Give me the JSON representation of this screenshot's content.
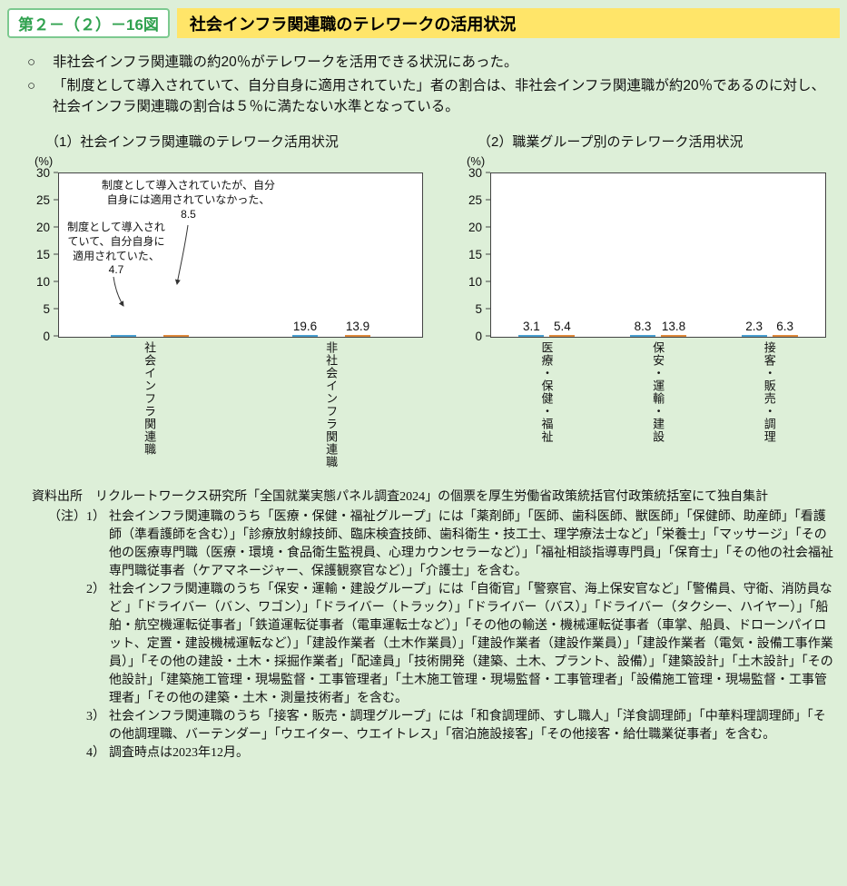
{
  "header": {
    "figure_label": "第２－（２）－16図",
    "title": "社会インフラ関連職のテレワークの活用状況"
  },
  "bullets": [
    "非社会インフラ関連職の約20％がテレワークを活用できる状況にあった。",
    "「制度として導入されていて、自分自身に適用されていた」者の割合は、非社会インフラ関連職が約20％であるのに対し、社会インフラ関連職の割合は５％に満たない水準となっている。"
  ],
  "colors": {
    "page_background": "#ddefd8",
    "title_highlight": "#ffe569",
    "figure_label_green": "#2fa14e",
    "series_blue": "#3e9cd0",
    "series_orange": "#e8923f"
  },
  "chart_data": [
    {
      "type": "bar",
      "title": "（1）社会インフラ関連職のテレワーク活用状況",
      "ylabel": "(%)",
      "xlabel": "",
      "ylim": [
        0,
        30
      ],
      "yticks": [
        0,
        5,
        10,
        15,
        20,
        25,
        30
      ],
      "grid": false,
      "legend_position": "none",
      "categories": [
        "社会インフラ関連職",
        "非社会インフラ関連職"
      ],
      "series": [
        {
          "name": "制度として導入されていて、自分自身に適用されていた",
          "values": [
            4.7,
            19.6
          ],
          "labels": [
            null,
            "19.6"
          ],
          "style": "blue-wave"
        },
        {
          "name": "制度として導入されていたが、自分自身には適用されていなかった",
          "values": [
            8.5,
            13.9
          ],
          "labels": [
            null,
            "13.9"
          ],
          "style": "orange-dot"
        }
      ],
      "annotations": [
        {
          "text": "制度として導入されていたが、自分\n自身には適用されていなかった、\n8.5",
          "series": "制度として導入されていたが、自分自身には適用されていなかった",
          "category": "社会インフラ関連職",
          "value": 8.5
        },
        {
          "text": "制度として導入され\nていて、自分自身に\n適用されていた、\n4.7",
          "series": "制度として導入されていて、自分自身に適用されていた",
          "category": "社会インフラ関連職",
          "value": 4.7
        }
      ]
    },
    {
      "type": "bar",
      "title": "（2）職業グループ別のテレワーク活用状況",
      "ylabel": "(%)",
      "xlabel": "",
      "ylim": [
        0,
        30
      ],
      "yticks": [
        0,
        5,
        10,
        15,
        20,
        25,
        30
      ],
      "grid": false,
      "legend_position": "none",
      "categories": [
        "医療・保健・福祉",
        "保安・運輸・建設",
        "接客・販売・調理"
      ],
      "series": [
        {
          "name": "制度として導入されていて、自分自身に適用されていた",
          "values": [
            3.1,
            8.3,
            2.3
          ],
          "labels": [
            "3.1",
            "8.3",
            "2.3"
          ],
          "style": "blue-wave"
        },
        {
          "name": "制度として導入されていたが、自分自身には適用されていなかった",
          "values": [
            5.4,
            13.8,
            6.3
          ],
          "labels": [
            "5.4",
            "13.8",
            "6.3"
          ],
          "style": "orange-dot"
        }
      ]
    }
  ],
  "source": {
    "label": "資料出所",
    "text": "リクルートワークス研究所「全国就業実態パネル調査2024」の個票を厚生労働省政策統括官付政策統括室にて独自集計"
  },
  "notes": {
    "label": "（注）",
    "items": [
      {
        "num": "1）",
        "text": "社会インフラ関連職のうち「医療・保健・福祉グループ」には「薬剤師」「医師、歯科医師、獣医師」「保健師、助産師」「看護師（準看護師を含む）」「診療放射線技師、臨床検査技師、歯科衛生・技工士、理学療法士など」「栄養士」「マッサージ」「その他の医療専門職（医療・環境・食品衛生監視員、心理カウンセラーなど）」「福祉相談指導専門員」「保育士」「その他の社会福祉専門職従事者（ケアマネージャー、保護観察官など）」「介護士」を含む。"
      },
      {
        "num": "2）",
        "text": "社会インフラ関連職のうち「保安・運輸・建設グループ」には「自衛官」「警察官、海上保安官など」「警備員、守衛、消防員など 」「ドライバー（バン、ワゴン）」「ドライバー（トラック）」「ドライバー（バス）」「ドライバー（タクシー、ハイヤー）」「船舶・航空機運転従事者」「鉄道運転従事者（電車運転士など）」「その他の輸送・機械運転従事者（車掌、船員、ドローンパイロット、定置・建設機械運転など）」「建設作業者（土木作業員）」「建設作業者（建設作業員）」「建設作業者（電気・設備工事作業員）」「その他の建設・土木・採掘作業者」「配達員」「技術開発（建築、土木、プラント、設備）」「建築設計」「土木設計」「その他設計」「建築施工管理・現場監督・工事管理者」「土木施工管理・現場監督・工事管理者」「設備施工管理・現場監督・工事管理者」「その他の建築・土木・測量技術者」を含む。"
      },
      {
        "num": "3）",
        "text": "社会インフラ関連職のうち「接客・販売・調理グループ」には「和食調理師、すし職人」「洋食調理師」「中華料理調理師」「その他調理職、バーテンダー」「ウエイター、ウエイトレス」「宿泊施設接客」「その他接客・給仕職業従事者」を含む。"
      },
      {
        "num": "4）",
        "text": "調査時点は2023年12月。"
      }
    ]
  }
}
